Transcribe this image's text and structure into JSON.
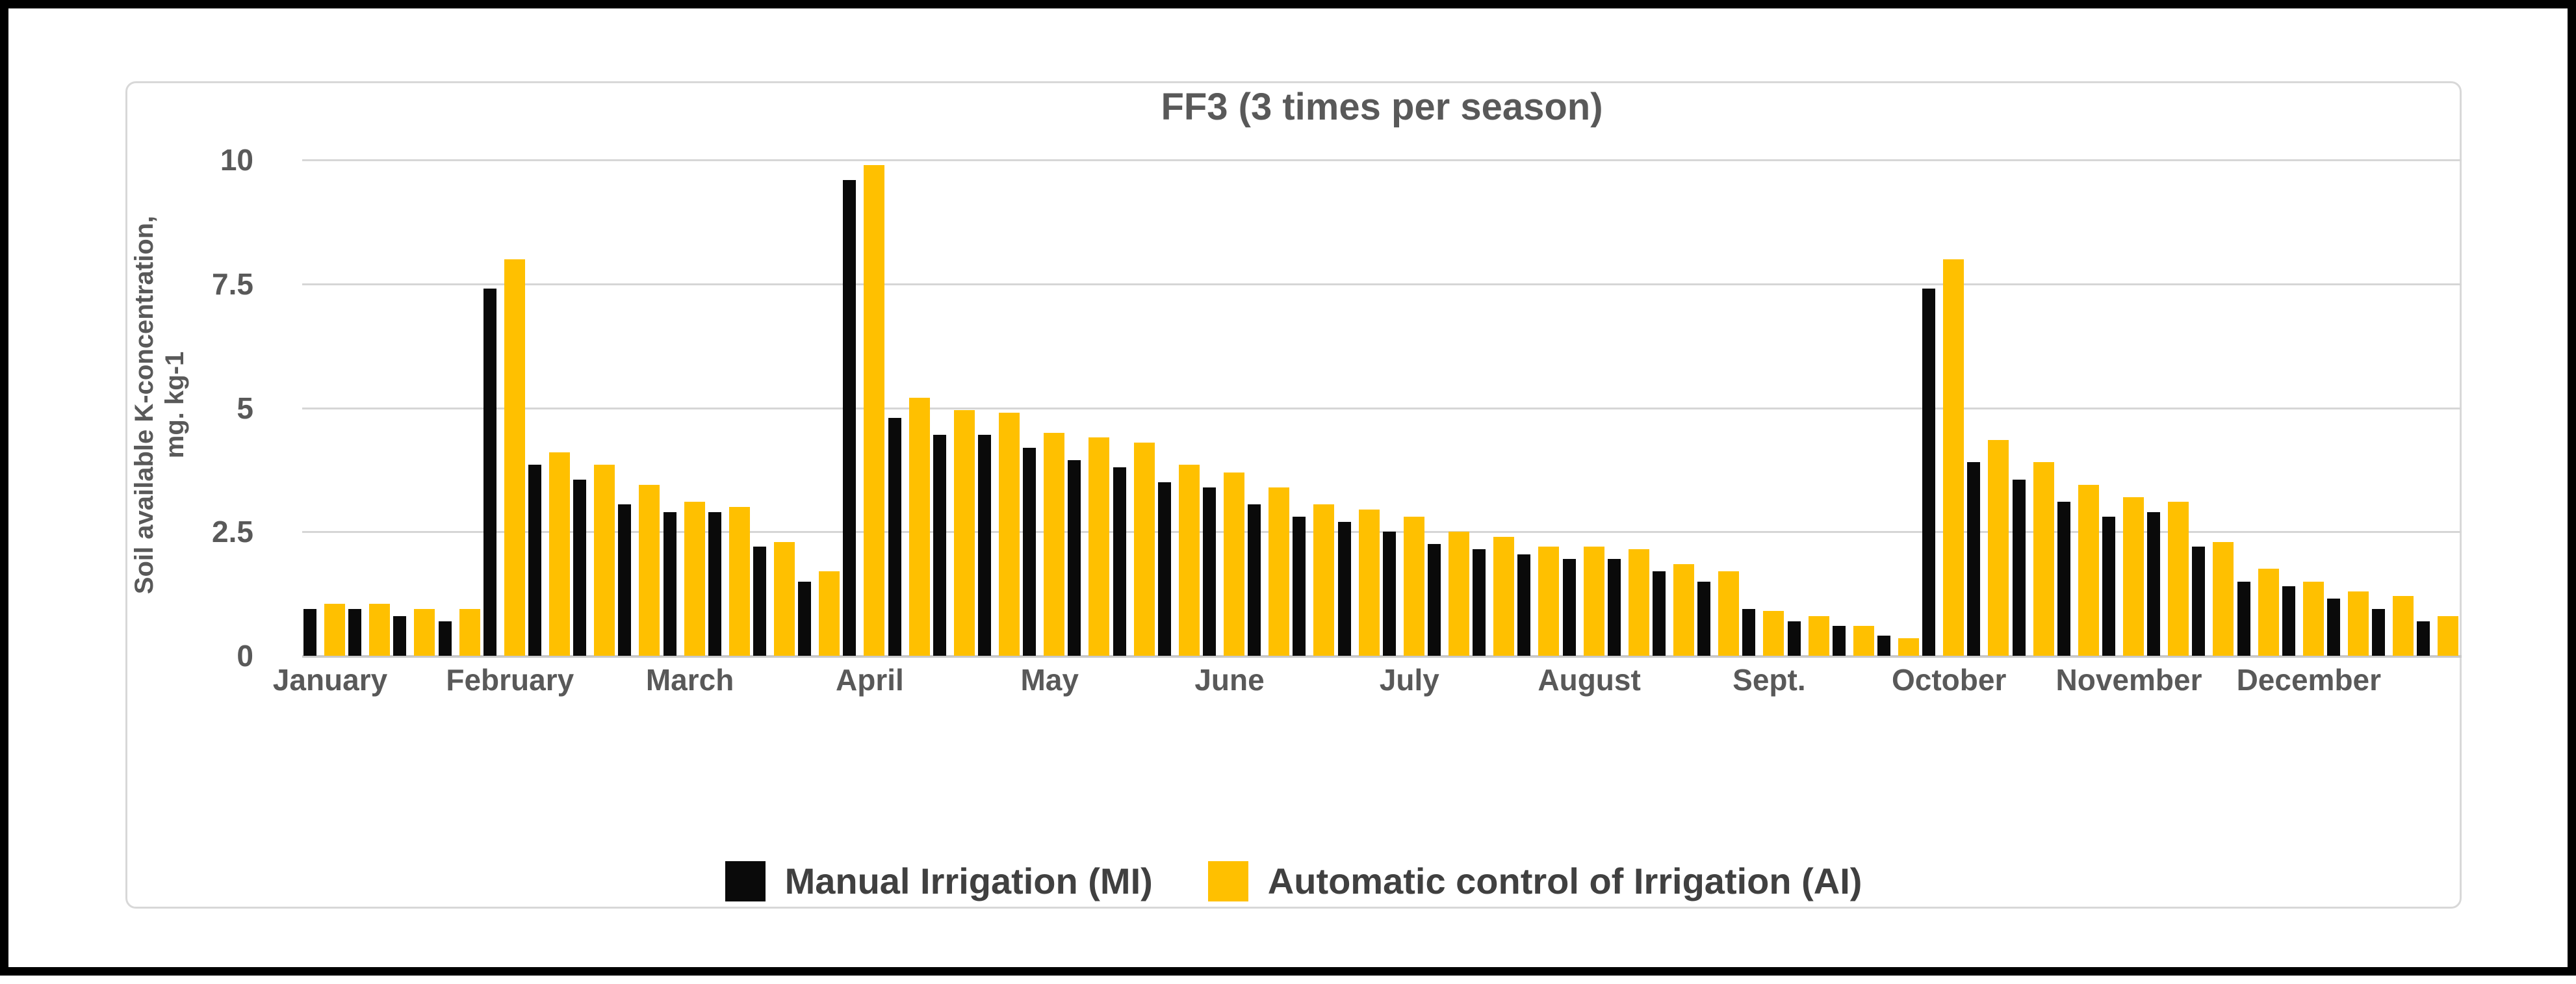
{
  "frame": {
    "border_color": "#000000",
    "panel_border_color": "#d8d8d8",
    "background": "#ffffff"
  },
  "chart_data": {
    "type": "bar",
    "title": "FF3 (3 times per season)",
    "ylabel_line1": "Soil available K-concentration,",
    "ylabel_line2": "mg. kg-1",
    "xlabel": "",
    "ylim": [
      0,
      10
    ],
    "yticks": [
      0,
      2.5,
      5,
      7.5,
      10
    ],
    "ytick_labels": [
      "0",
      "2.5",
      "5",
      "7.5",
      "10"
    ],
    "grid": "horizontal",
    "legend_position": "bottom-center",
    "categories": [
      "January",
      "February",
      "March",
      "April",
      "May",
      "June",
      "July",
      "August",
      "Sept.",
      "October",
      "November",
      "December"
    ],
    "pairs_per_month": 4,
    "series": [
      {
        "name": "Manual Irrigation (MI)",
        "color": "#0a0a0a",
        "values": [
          0.95,
          0.95,
          0.8,
          0.7,
          7.4,
          3.85,
          3.55,
          3.05,
          2.9,
          2.9,
          2.2,
          1.5,
          9.6,
          4.8,
          4.45,
          4.45,
          4.2,
          3.95,
          3.8,
          3.5,
          3.4,
          3.05,
          2.8,
          2.7,
          2.5,
          2.25,
          2.15,
          2.05,
          1.95,
          1.95,
          1.7,
          1.5,
          0.95,
          0.7,
          0.6,
          0.4,
          7.4,
          3.9,
          3.55,
          3.1,
          2.8,
          2.9,
          2.2,
          1.5,
          1.4,
          1.15,
          0.95,
          0.7
        ]
      },
      {
        "name": "Automatic control of Irrigation (AI)",
        "color": "#ffc000",
        "values": [
          1.05,
          1.05,
          0.95,
          0.95,
          8.0,
          4.1,
          3.85,
          3.45,
          3.1,
          3.0,
          2.3,
          1.7,
          9.9,
          5.2,
          4.95,
          4.9,
          4.5,
          4.4,
          4.3,
          3.85,
          3.7,
          3.4,
          3.05,
          2.95,
          2.8,
          2.5,
          2.4,
          2.2,
          2.2,
          2.15,
          1.85,
          1.7,
          0.9,
          0.8,
          0.6,
          0.35,
          8.0,
          4.35,
          3.9,
          3.45,
          3.2,
          3.1,
          2.3,
          1.75,
          1.5,
          1.3,
          1.2,
          0.8
        ]
      }
    ]
  }
}
